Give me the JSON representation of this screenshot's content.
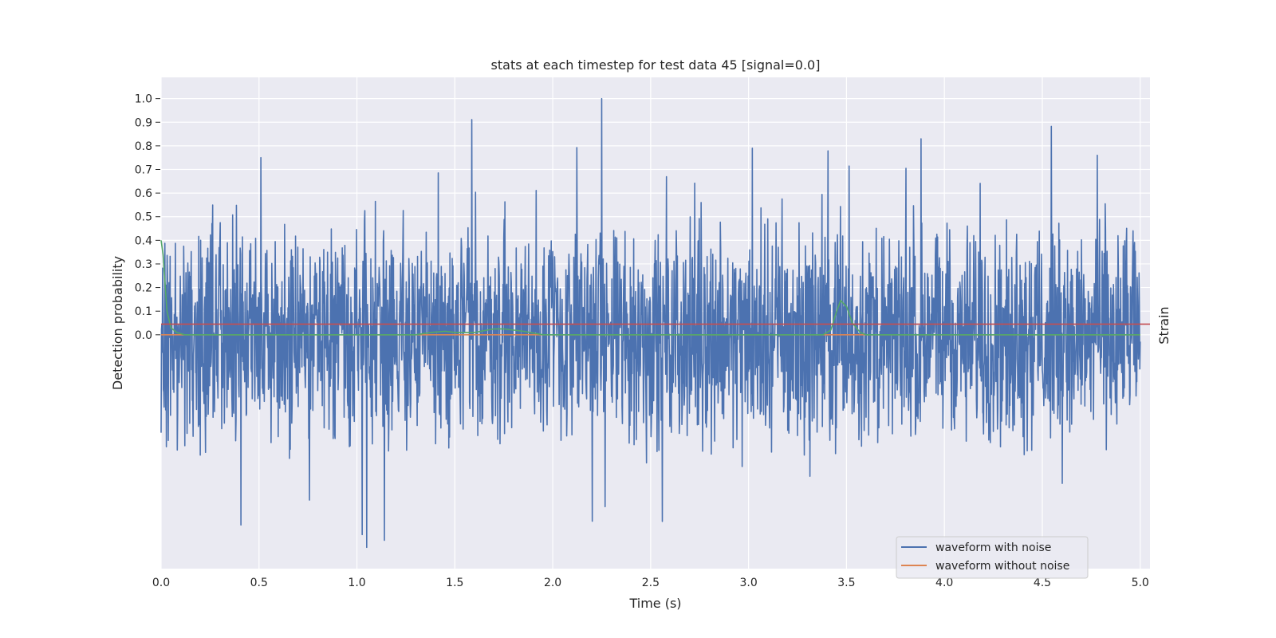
{
  "chart_data": {
    "type": "line",
    "title": "stats at each timestep for test data 45 [signal=0.0]",
    "xlabel": "Time (s)",
    "ylabel_left": "Detection probability",
    "ylabel_right": "Strain",
    "xlim": [
      0.0,
      5.05
    ],
    "ylim_left": [
      -0.99,
      1.09
    ],
    "x_ticks": [
      "0.0",
      "0.5",
      "1.0",
      "1.5",
      "2.0",
      "2.5",
      "3.0",
      "3.5",
      "4.0",
      "4.5",
      "5.0"
    ],
    "y_ticks": [
      "0.0",
      "0.1",
      "0.2",
      "0.3",
      "0.4",
      "0.5",
      "0.6",
      "0.7",
      "0.8",
      "0.9",
      "1.0"
    ],
    "grid": true,
    "legend_position": "lower-right",
    "background_color": "#eaeaf2",
    "series": [
      {
        "name": "waveform with noise",
        "color": "#4c72b0",
        "style": "dense-noise",
        "x_range": [
          0.0,
          5.0
        ],
        "approx_min": -0.9,
        "approx_max": 1.0,
        "peaks": [
          {
            "x": 2.25,
            "y": 1.0
          },
          {
            "x": 3.88,
            "y": 0.83
          },
          {
            "x": 3.02,
            "y": 0.79
          },
          {
            "x": 4.78,
            "y": 0.76
          },
          {
            "x": 0.51,
            "y": 0.75
          },
          {
            "x": 1.05,
            "y": -0.9
          },
          {
            "x": 1.14,
            "y": -0.87
          },
          {
            "x": 2.56,
            "y": -0.79
          }
        ]
      },
      {
        "name": "waveform without noise",
        "color": "#dd8452",
        "x": [
          0.0,
          5.0
        ],
        "y": [
          0.0,
          0.0
        ]
      },
      {
        "color": "#55a868",
        "x": [
          0.0,
          0.01,
          0.02,
          0.03,
          0.05,
          0.08,
          0.12,
          0.2,
          1.3,
          1.38,
          1.45,
          1.5,
          1.6,
          1.7,
          1.75,
          1.85,
          1.95,
          2.0,
          3.38,
          3.42,
          3.45,
          3.47,
          3.5,
          3.53,
          3.57,
          3.6,
          5.0
        ],
        "y": [
          0.4,
          0.34,
          0.22,
          0.1,
          0.03,
          0.01,
          0.0,
          0.0,
          0.0,
          0.01,
          0.015,
          0.01,
          0.01,
          0.025,
          0.025,
          0.015,
          0.0,
          0.0,
          0.0,
          0.02,
          0.1,
          0.145,
          0.12,
          0.05,
          0.01,
          0.0,
          0.0
        ]
      },
      {
        "color": "#c44e52",
        "x": [
          0.0,
          5.05
        ],
        "y": [
          0.045,
          0.045
        ]
      }
    ]
  }
}
